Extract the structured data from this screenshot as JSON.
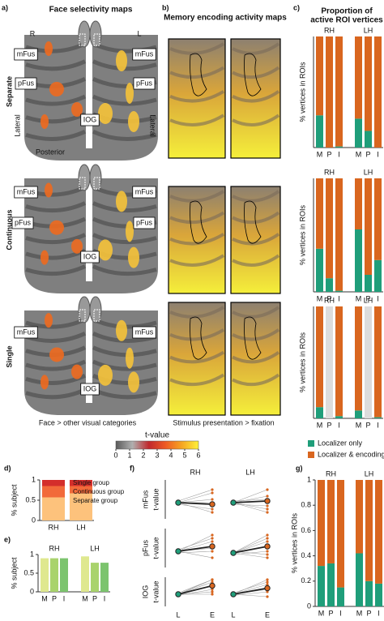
{
  "panel_a": {
    "label": "a)",
    "title": "Face selectivity maps",
    "hemispheres": [
      "R",
      "L"
    ],
    "rows": [
      {
        "name": "Separate",
        "rois": [
          "mFus",
          "mFus",
          "pFus",
          "pFus",
          "IOG"
        ]
      },
      {
        "name": "Continuous",
        "rois": [
          "mFus",
          "mFus",
          "pFus",
          "pFus",
          "IOG"
        ]
      },
      {
        "name": "Single",
        "rois": [
          "mFus",
          "mFus",
          "IOG"
        ]
      }
    ],
    "orientation": [
      "Lateral",
      "Lateral",
      "Posterior"
    ],
    "caption": "Face > other visual categories"
  },
  "panel_b": {
    "label": "b)",
    "title": "Memory encoding activity maps",
    "caption": "Stimulus presentation > fixation"
  },
  "chart_data": [
    {
      "type": "colorbar",
      "title": "t-value",
      "lim": [
        0,
        6
      ],
      "ticks": [
        0,
        1,
        2,
        3,
        4,
        5,
        6
      ],
      "colors": [
        "#5a5a5a",
        "#b0b0b0",
        "#c0282d",
        "#ee5a24",
        "#f6a623",
        "#fff23a"
      ]
    },
    {
      "type": "stacked_bar",
      "panel": "c)",
      "title": [
        "Proportion of",
        "active ROI vertices"
      ],
      "ylabel": "% vertices in ROIs",
      "ylim": [
        0,
        1
      ],
      "categories": [
        "M",
        "P",
        "I",
        "M",
        "P",
        "I"
      ],
      "groups": [
        "RH",
        "LH"
      ],
      "empty_color": "#dcdcdc",
      "series": [
        {
          "name": "Localizer only",
          "color": "#1f9e7a",
          "values": [
            [
              0.29,
              0,
              0.01,
              0.26,
              0.15,
              0
            ],
            [
              0.38,
              0.12,
              0.01,
              0.55,
              0.15,
              0.28
            ],
            [
              0.1,
              null,
              0.02,
              0.07,
              null,
              0.01
            ]
          ]
        },
        {
          "name": "Localizer & encoding",
          "color": "#d9661f",
          "values": [
            [
              0.71,
              1,
              0.99,
              0.74,
              0.85,
              1
            ],
            [
              0.62,
              0.88,
              0.99,
              0.45,
              0.85,
              0.72
            ],
            [
              0.9,
              null,
              0.98,
              0.93,
              null,
              0.99
            ]
          ]
        }
      ]
    },
    {
      "type": "stacked_bar",
      "panel": "d)",
      "ylabel": "% subject",
      "ylim": [
        0,
        1
      ],
      "yticks": [
        0,
        0.5,
        1
      ],
      "categories": [
        "RH",
        "LH"
      ],
      "series": [
        {
          "name": "Separate group",
          "color": "#fdc27c",
          "values": [
            0.57,
            0.67
          ]
        },
        {
          "name": "Continuous group",
          "color": "#f26a3a",
          "values": [
            0.28,
            0.18
          ]
        },
        {
          "name": "Single group",
          "color": "#d42e2b",
          "values": [
            0.15,
            0.15
          ]
        }
      ]
    },
    {
      "type": "bar",
      "panel": "e)",
      "ylabel": "% subject",
      "ylim": [
        0,
        1
      ],
      "yticks": [
        0,
        0.5,
        1
      ],
      "categories": [
        "M",
        "P",
        "I",
        "M",
        "P",
        "I"
      ],
      "groups": [
        "RH",
        "LH"
      ],
      "values": [
        0.9,
        0.9,
        0.9,
        0.95,
        0.78,
        0.78
      ],
      "colors": [
        "#dfe88f",
        "#a9d36c",
        "#7cc46e",
        "#dfe88f",
        "#a9d36c",
        "#7cc46e"
      ]
    },
    {
      "type": "paired_line",
      "panel": "f)",
      "ylabel": "t-value",
      "categories": [
        "L",
        "E"
      ],
      "groups": [
        "RH",
        "LH"
      ],
      "rois": [
        "mFus",
        "pFus",
        "IOG"
      ],
      "ylim": [
        0,
        12
      ],
      "colors": [
        "#1f9e7a",
        "#d9661f"
      ],
      "mean_color": "#222222",
      "line_color": "#9a9a9a",
      "panels": [
        {
          "mean": [
            5,
            4.5
          ],
          "subjects": [
            [
              5,
              8
            ],
            [
              5,
              6
            ],
            [
              4.5,
              3
            ],
            [
              5,
              2
            ],
            [
              5.5,
              9
            ],
            [
              5,
              5
            ]
          ]
        },
        {
          "mean": [
            5,
            5.5
          ],
          "subjects": [
            [
              5,
              9
            ],
            [
              5,
              7
            ],
            [
              4.5,
              4
            ],
            [
              5,
              3
            ],
            [
              5.5,
              6
            ],
            [
              5,
              2
            ]
          ]
        },
        {
          "mean": [
            5,
            6.5
          ],
          "subjects": [
            [
              5,
              10
            ],
            [
              5,
              8
            ],
            [
              4.5,
              5
            ],
            [
              5,
              3
            ],
            [
              5.5,
              9
            ],
            [
              5,
              6
            ]
          ]
        },
        {
          "mean": [
            4.5,
            6.5
          ],
          "subjects": [
            [
              4.5,
              10
            ],
            [
              4.5,
              8
            ],
            [
              4,
              5
            ],
            [
              5,
              4
            ],
            [
              4.5,
              9
            ],
            [
              4.5,
              3
            ]
          ]
        },
        {
          "mean": [
            5,
            8.5
          ],
          "subjects": [
            [
              5,
              11
            ],
            [
              5,
              10
            ],
            [
              4.5,
              7
            ],
            [
              5,
              6
            ],
            [
              5.5,
              11
            ],
            [
              5,
              5
            ]
          ]
        },
        {
          "mean": [
            5,
            7.5
          ],
          "subjects": [
            [
              5,
              11
            ],
            [
              5,
              9
            ],
            [
              4.5,
              6
            ],
            [
              5,
              4
            ],
            [
              5.5,
              10
            ],
            [
              5,
              7
            ]
          ]
        }
      ]
    },
    {
      "type": "stacked_bar",
      "panel": "g)",
      "ylabel": "% vertices in ROIs",
      "ylim": [
        0,
        1
      ],
      "yticks": [
        0,
        0.2,
        0.4,
        0.6,
        0.8,
        1
      ],
      "categories": [
        "M",
        "P",
        "I",
        "M",
        "P",
        "I"
      ],
      "groups": [
        "RH",
        "LH"
      ],
      "series": [
        {
          "color": "#1f9e7a",
          "values": [
            0.32,
            0.34,
            0.15,
            0.42,
            0.2,
            0.18
          ]
        },
        {
          "color": "#d9661f",
          "values": [
            0.68,
            0.66,
            0.85,
            0.58,
            0.8,
            0.82
          ]
        }
      ]
    }
  ]
}
